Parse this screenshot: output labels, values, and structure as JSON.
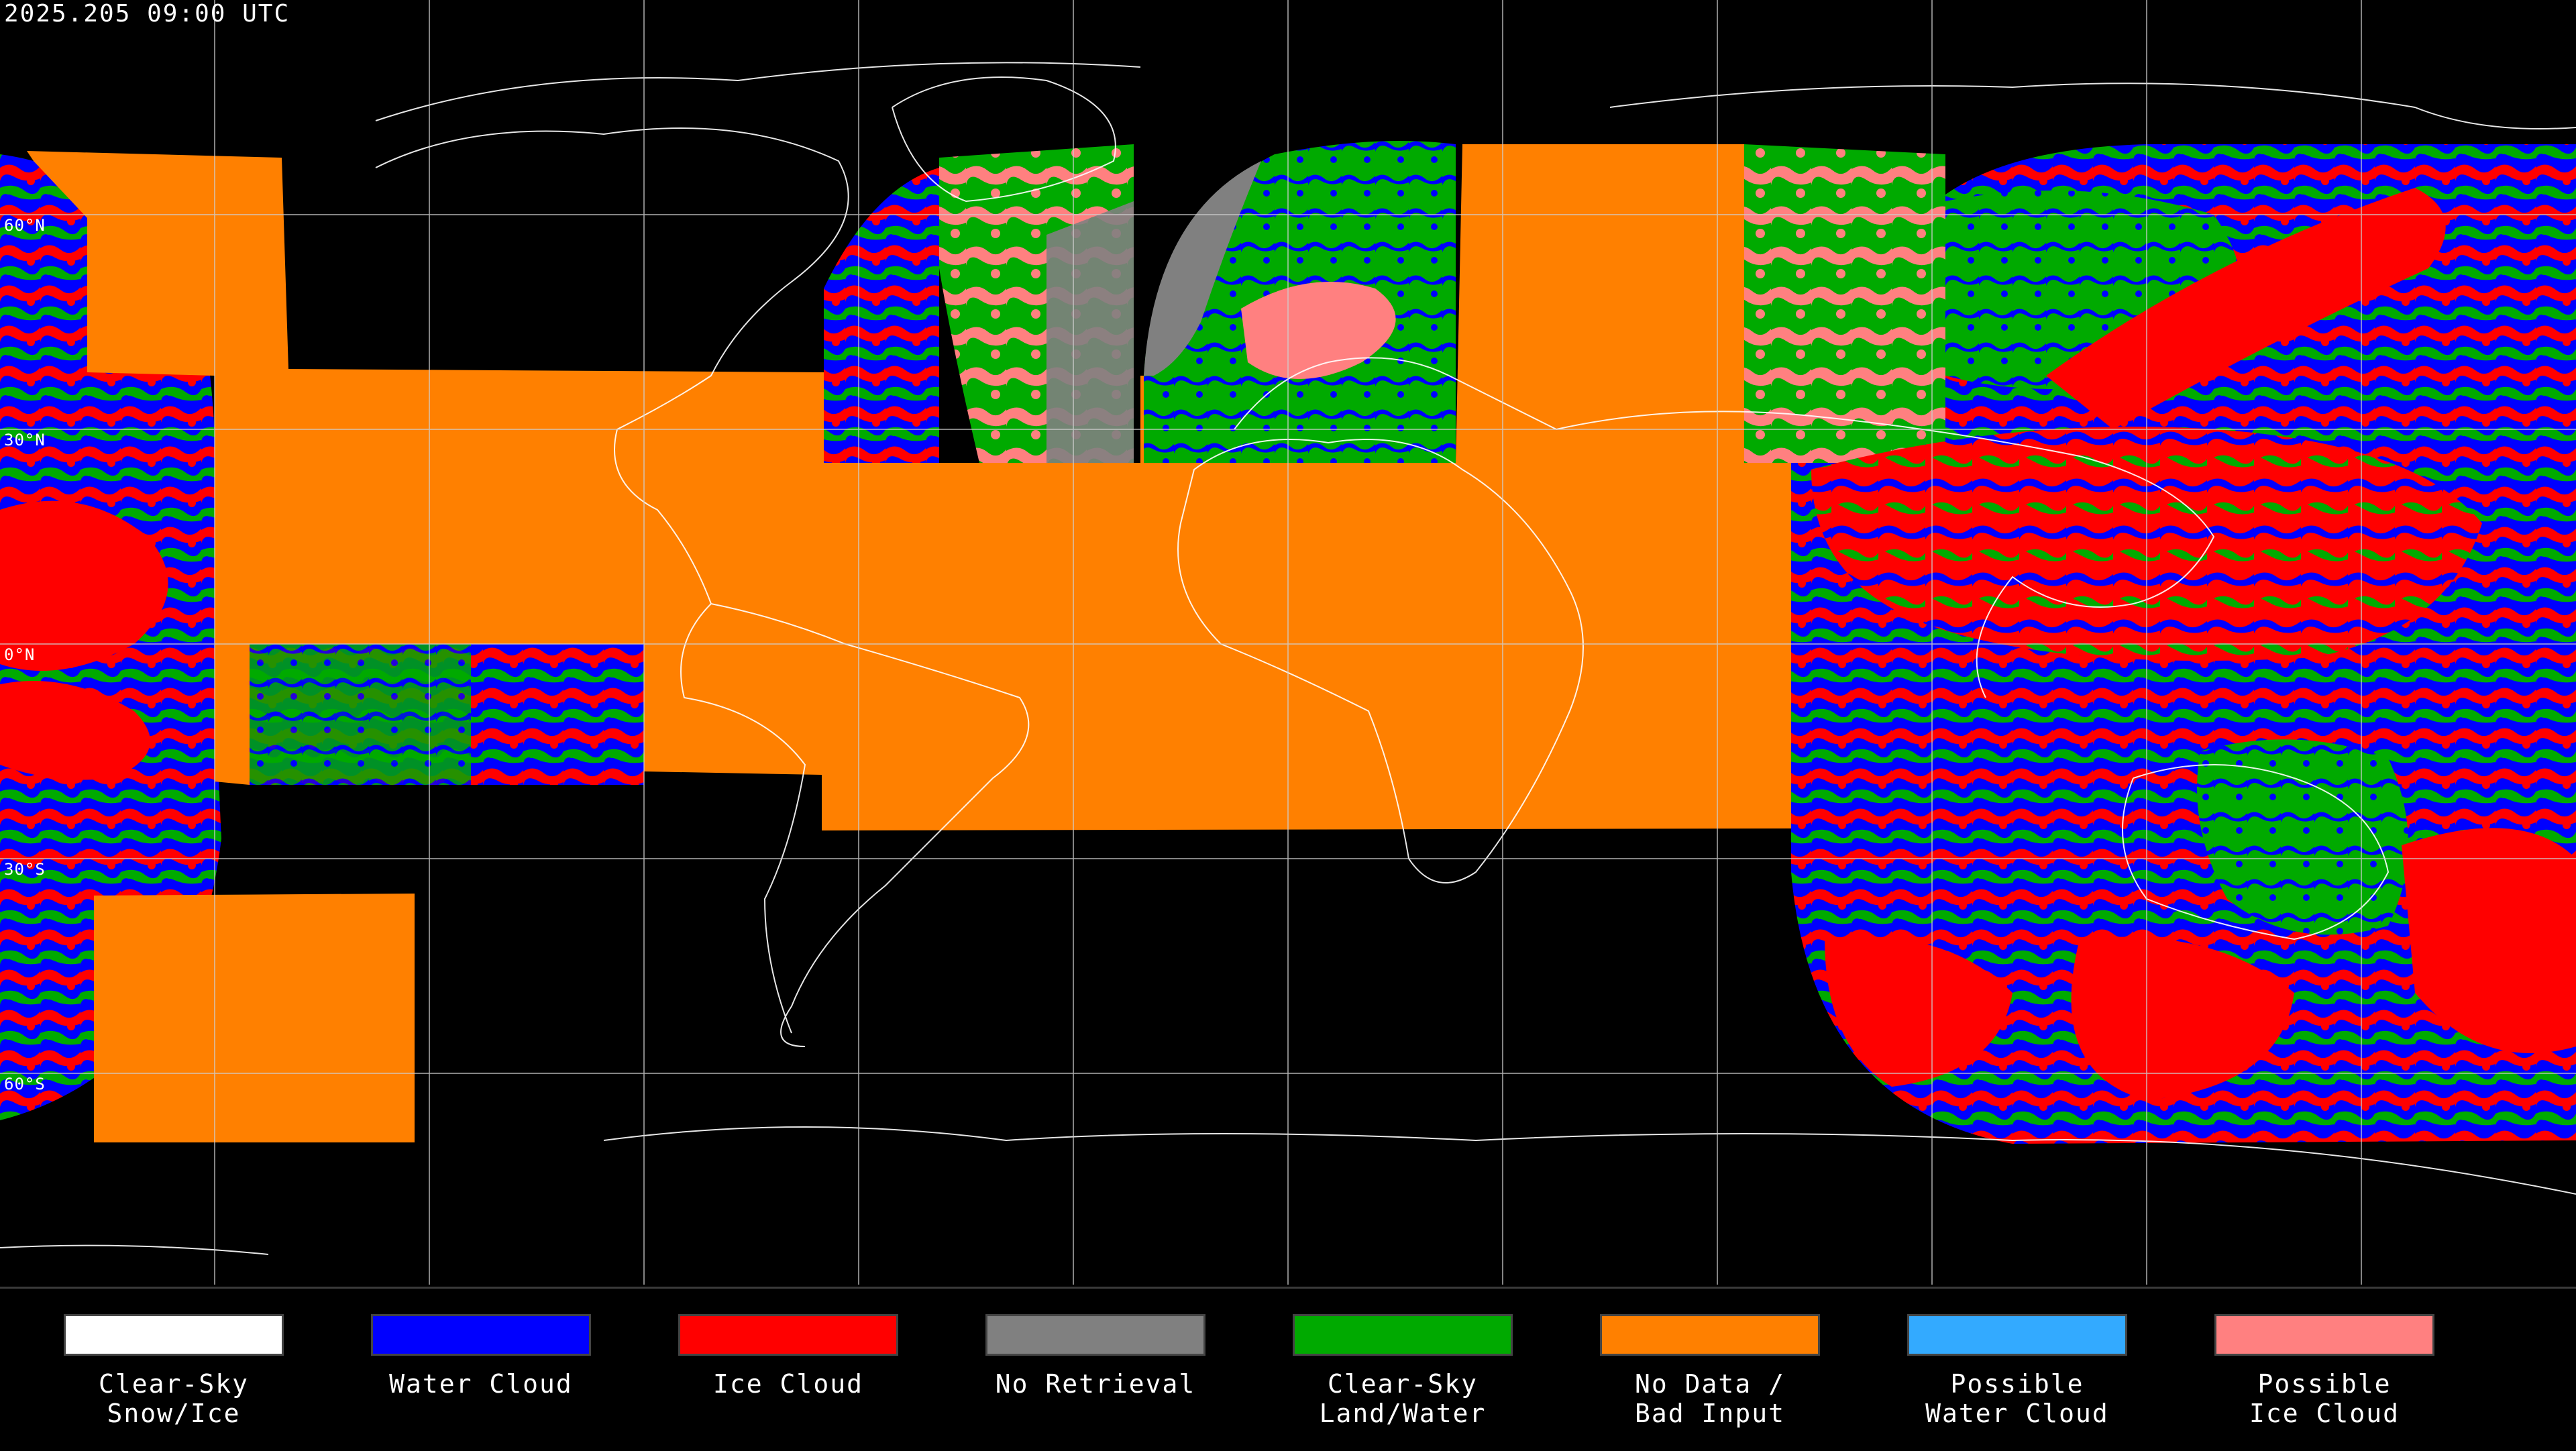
{
  "header": {
    "timestamp": "2025.205 09:00 UTC"
  },
  "map": {
    "lat_labels": [
      "60°N",
      "30°N",
      "0°N",
      "30°S",
      "60°S"
    ],
    "colors": {
      "clear_sky_snow_ice": "#ffffff",
      "water_cloud": "#0000ff",
      "ice_cloud": "#ff0000",
      "no_retrieval": "#808080",
      "clear_sky_land_water": "#00aa00",
      "no_data": "#ff8000",
      "possible_water_cloud": "#33aaff",
      "possible_ice_cloud": "#ff8080"
    }
  },
  "legend": {
    "items": [
      {
        "label": "Clear-Sky\nSnow/Ice",
        "color": "#ffffff"
      },
      {
        "label": "Water Cloud",
        "color": "#0000ff"
      },
      {
        "label": "Ice Cloud",
        "color": "#ff0000"
      },
      {
        "label": "No Retrieval",
        "color": "#808080"
      },
      {
        "label": "Clear-Sky\nLand/Water",
        "color": "#00aa00"
      },
      {
        "label": "No Data /\nBad Input",
        "color": "#ff8000"
      },
      {
        "label": "Possible\nWater Cloud",
        "color": "#33aaff"
      },
      {
        "label": "Possible\nIce Cloud",
        "color": "#ff8080"
      }
    ]
  }
}
